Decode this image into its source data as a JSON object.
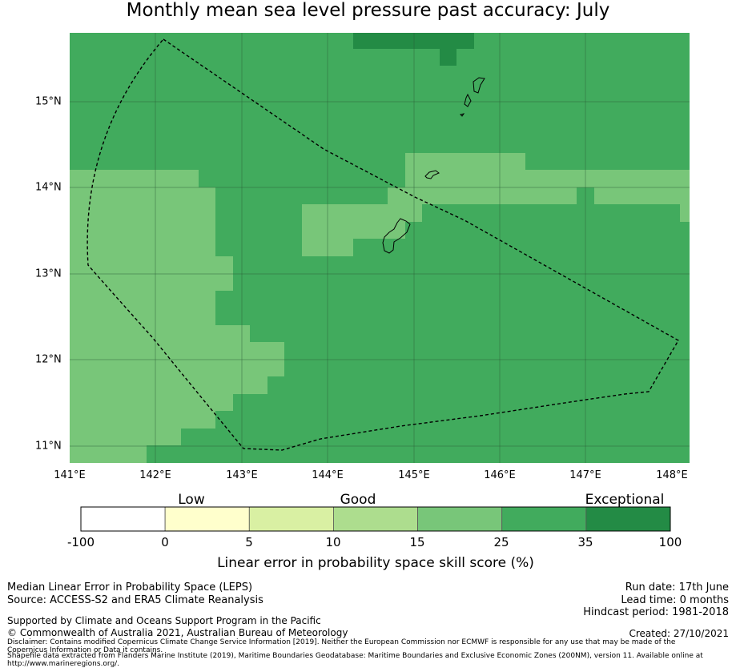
{
  "title": "Monthly mean sea level pressure past accuracy: July",
  "map": {
    "x_ticks": [
      "141°E",
      "142°E",
      "143°E",
      "144°E",
      "145°E",
      "146°E",
      "147°E",
      "148°E"
    ],
    "y_ticks": [
      "15°N",
      "14°N",
      "13°N",
      "12°N",
      "11°N"
    ],
    "colors": {
      "exceptional": "#238b45",
      "band_25_35": "#41ab5d",
      "band_15_25": "#78c679",
      "boundary": "#000000",
      "gridline": "#2b5a35"
    }
  },
  "colorbar": {
    "categories": [
      "Low",
      "Good",
      "Exceptional"
    ],
    "ticks": [
      "-100",
      "0",
      "5",
      "10",
      "15",
      "25",
      "35",
      "100"
    ],
    "colors": [
      "#ffffff",
      "#ffffcc",
      "#d9f0a3",
      "#addd8e",
      "#78c679",
      "#41ab5d",
      "#238b45"
    ],
    "label": "Linear error in probability space skill score (%)"
  },
  "footer": {
    "left": [
      "Median Linear Error in Probability Space (LEPS)",
      "Source: ACCESS-S2 and ERA5 Climate Reanalysis"
    ],
    "support": "Supported by Climate and Oceans Support Program in the Pacific",
    "copyright": "© Commonwealth of Australia 2021, Australian Bureau of Meteorology",
    "disclaimer": "Disclaimer: Contains modified Copernicus Climate Change Service Information [2019]. Neither the European Commission nor ECMWF is responsible for any use that may be made of the Copernicus Information or Data it contains.",
    "shapefile": "Shapefile data extracted from Flanders Marine Institute (2019), Maritime Boundaries Geodatabase: Maritime Boundaries and Exclusive Economic Zones (200NM), version 11. Available online at http://www.marineregions.org/.",
    "run_date": "Run date: 17th June",
    "lead_time": "Lead time: 0 months",
    "hindcast": "Hindcast period: 1981-2018",
    "created": "Created: 27/10/2021"
  }
}
